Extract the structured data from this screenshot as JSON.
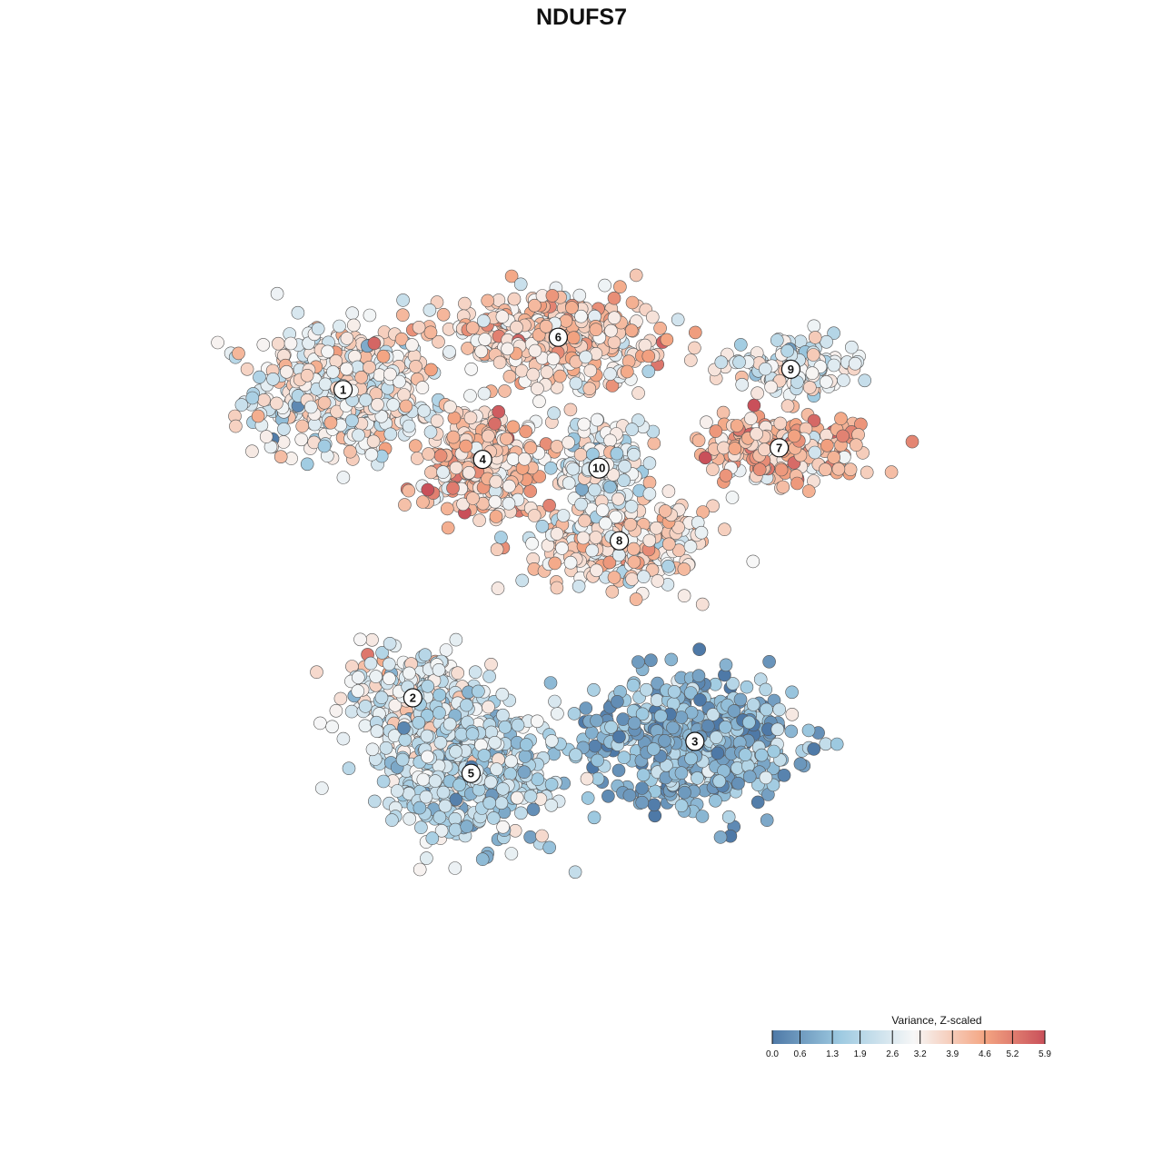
{
  "chart_data": {
    "type": "scatter",
    "title": "NDUFS7",
    "xlabel": "",
    "ylabel": "",
    "grid": false,
    "legend": {
      "title": "Variance, Z-scaled",
      "placement": "bottom-right",
      "ticks": [
        "0.0",
        "0.6",
        "1.3",
        "1.9",
        "2.6",
        "3.2",
        "3.9",
        "4.6",
        "5.2",
        "5.9"
      ],
      "range": [
        0.0,
        5.9
      ]
    },
    "colors": {
      "low": "#4e79a7",
      "mid_low": "#9ecae1",
      "mid": "#f7f7f7",
      "mid_high": "#f4a582",
      "high": "#c9505a"
    },
    "clusters": [
      {
        "label": "1",
        "x": -8.2,
        "y": 6.6,
        "mean_value": 3.0
      },
      {
        "label": "2",
        "x": -5.8,
        "y": -4.0,
        "mean_value": 2.9
      },
      {
        "label": "3",
        "x": 3.9,
        "y": -5.5,
        "mean_value": 1.1
      },
      {
        "label": "4",
        "x": -3.4,
        "y": 4.2,
        "mean_value": 3.9
      },
      {
        "label": "5",
        "x": -3.8,
        "y": -6.6,
        "mean_value": 2.0
      },
      {
        "label": "6",
        "x": -0.8,
        "y": 8.4,
        "mean_value": 3.7
      },
      {
        "label": "7",
        "x": 6.8,
        "y": 4.6,
        "mean_value": 4.2
      },
      {
        "label": "8",
        "x": 1.3,
        "y": 1.4,
        "mean_value": 3.6
      },
      {
        "label": "9",
        "x": 7.2,
        "y": 7.3,
        "mean_value": 2.8
      },
      {
        "label": "10",
        "x": 0.6,
        "y": 3.9,
        "mean_value": 2.8
      }
    ]
  }
}
